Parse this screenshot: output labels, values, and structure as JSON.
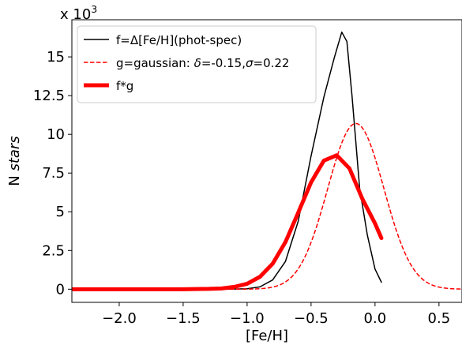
{
  "chart_data": {
    "type": "line",
    "xlabel": "[Fe/H]",
    "ylabel": "N stars",
    "ylabel_parts": [
      "N ",
      "stars"
    ],
    "multiplier": {
      "base": "x 10",
      "exponent": "3"
    },
    "xlim": [
      -2.37,
      0.68
    ],
    "ylim": [
      -0.85,
      17.4
    ],
    "x_ticks": [
      -2.0,
      -1.5,
      -1.0,
      -0.5,
      0.0,
      0.5
    ],
    "x_tick_labels": [
      "−2.0",
      "−1.5",
      "−1.0",
      "−0.5",
      "0.0",
      "0.5"
    ],
    "y_ticks": [
      0,
      2.5,
      5,
      7.5,
      10,
      12.5,
      15
    ],
    "y_tick_labels": [
      "0",
      "2.5",
      "5",
      "7.5",
      "10",
      "12.5",
      "15"
    ],
    "grid": false,
    "legend_position": "top-left",
    "series": [
      {
        "name": "f=Δ[Fe/H](phot-spec)",
        "color": "#000000",
        "style": "solid",
        "width": 1.5,
        "x": [
          -2.37,
          -1.2,
          -1.0,
          -0.9,
          -0.8,
          -0.7,
          -0.6,
          -0.5,
          -0.4,
          -0.32,
          -0.26,
          -0.22,
          -0.18,
          -0.12,
          -0.06,
          0.0,
          0.05
        ],
        "y": [
          0,
          0,
          0.03,
          0.15,
          0.6,
          1.8,
          4.4,
          8.6,
          12.4,
          14.9,
          16.6,
          16.0,
          12.5,
          6.5,
          3.5,
          1.3,
          0.45
        ]
      },
      {
        "name": "g=gaussian: δ=-0.15,σ=0.22",
        "color": "#ff0000",
        "style": "dashed",
        "width": 1.5,
        "gaussian": {
          "amplitude": 10.7,
          "mu": -0.15,
          "sigma": 0.22
        },
        "x_range": [
          -2.37,
          0.68
        ]
      },
      {
        "name": "f*g",
        "color": "#ff0000",
        "style": "solid",
        "width": 5,
        "x": [
          -2.37,
          -1.5,
          -1.3,
          -1.2,
          -1.1,
          -1.0,
          -0.9,
          -0.8,
          -0.7,
          -0.6,
          -0.5,
          -0.4,
          -0.3,
          -0.2,
          -0.1,
          0.0,
          0.05
        ],
        "y": [
          0,
          0,
          0.02,
          0.05,
          0.15,
          0.35,
          0.8,
          1.65,
          3.05,
          4.95,
          6.9,
          8.3,
          8.65,
          7.8,
          5.85,
          4.25,
          3.3
        ]
      }
    ],
    "legend_labels": {
      "f": "f=Δ[Fe/H](phot-spec)",
      "g_prefix": "g=gaussian: ",
      "g_delta": "δ",
      "g_delta_val": "=-0.15,",
      "g_sigma": "σ",
      "g_sigma_val": "=0.22",
      "fg": "f*g"
    }
  }
}
